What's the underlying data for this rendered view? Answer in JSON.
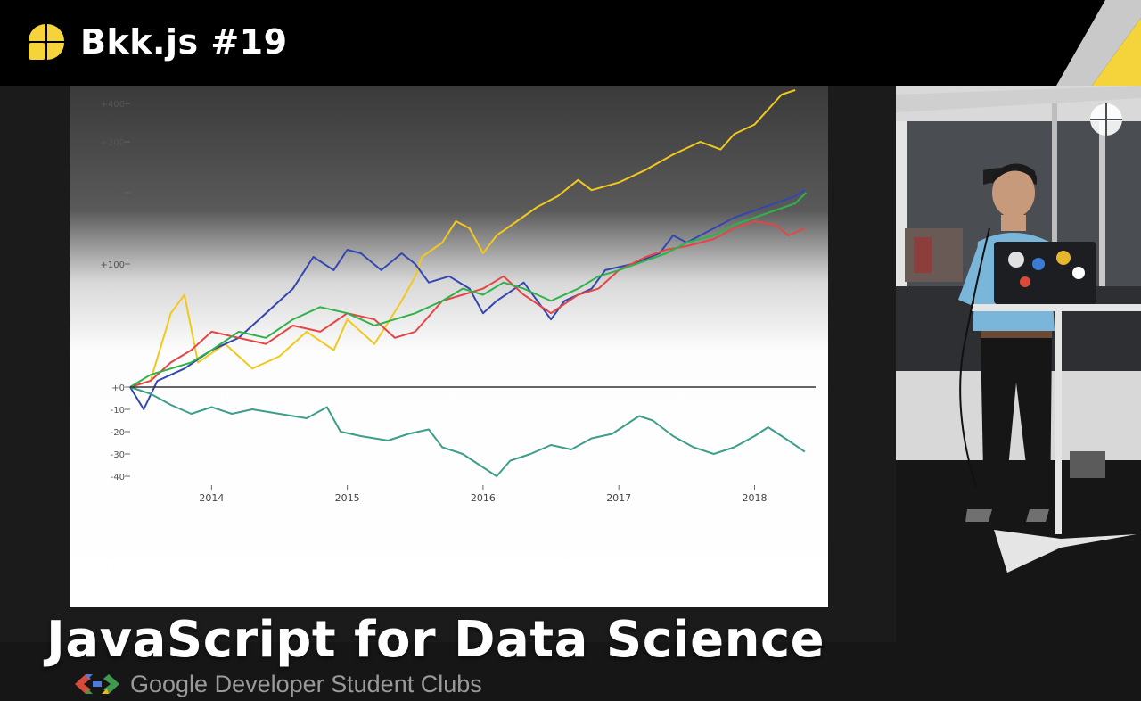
{
  "header": {
    "title": "Bkk.js #19",
    "logo_icon": "bkkjs-logo-icon",
    "accent_color": "#f5d33a"
  },
  "talk": {
    "title": "JavaScript for Data Science"
  },
  "sponsor": {
    "name": "Google Developer Student Clubs",
    "logo_icon": "gdsc-logo-icon"
  },
  "chart_data": {
    "type": "line",
    "title": "",
    "xlabel": "",
    "ylabel": "",
    "x_ticks": [
      "2014",
      "2015",
      "2016",
      "2017",
      "2018"
    ],
    "y_ticks": [
      "+400",
      "+300",
      "+200",
      "+100",
      "+0",
      "-10",
      "-20",
      "-30",
      "-40"
    ],
    "x_range": [
      2013.4,
      2018.45
    ],
    "grid": false,
    "baseline": 0,
    "series": [
      {
        "color": "#f2c81e",
        "points": [
          [
            2013.4,
            0
          ],
          [
            2013.55,
            5
          ],
          [
            2013.7,
            60
          ],
          [
            2013.8,
            75
          ],
          [
            2013.9,
            20
          ],
          [
            2014.1,
            35
          ],
          [
            2014.3,
            15
          ],
          [
            2014.5,
            25
          ],
          [
            2014.7,
            45
          ],
          [
            2014.9,
            30
          ],
          [
            2015.0,
            55
          ],
          [
            2015.2,
            35
          ],
          [
            2015.4,
            70
          ],
          [
            2015.5,
            90
          ],
          [
            2015.55,
            110
          ],
          [
            2015.7,
            130
          ],
          [
            2015.8,
            160
          ],
          [
            2015.9,
            150
          ],
          [
            2016.0,
            115
          ],
          [
            2016.1,
            140
          ],
          [
            2016.25,
            160
          ],
          [
            2016.4,
            180
          ],
          [
            2016.55,
            195
          ],
          [
            2016.7,
            225
          ],
          [
            2016.8,
            205
          ],
          [
            2017.0,
            220
          ],
          [
            2017.2,
            245
          ],
          [
            2017.4,
            275
          ],
          [
            2017.6,
            300
          ],
          [
            2017.75,
            285
          ],
          [
            2017.85,
            320
          ],
          [
            2018.0,
            345
          ],
          [
            2018.2,
            420
          ],
          [
            2018.3,
            430
          ]
        ]
      },
      {
        "color": "#3347b0",
        "points": [
          [
            2013.4,
            0
          ],
          [
            2013.5,
            -10
          ],
          [
            2013.6,
            5
          ],
          [
            2013.8,
            15
          ],
          [
            2014.0,
            30
          ],
          [
            2014.2,
            40
          ],
          [
            2014.4,
            60
          ],
          [
            2014.6,
            80
          ],
          [
            2014.75,
            110
          ],
          [
            2014.9,
            95
          ],
          [
            2015.0,
            120
          ],
          [
            2015.1,
            115
          ],
          [
            2015.25,
            95
          ],
          [
            2015.4,
            115
          ],
          [
            2015.5,
            100
          ],
          [
            2015.6,
            85
          ],
          [
            2015.75,
            90
          ],
          [
            2015.9,
            80
          ],
          [
            2016.0,
            60
          ],
          [
            2016.1,
            70
          ],
          [
            2016.3,
            85
          ],
          [
            2016.5,
            55
          ],
          [
            2016.6,
            70
          ],
          [
            2016.8,
            80
          ],
          [
            2016.9,
            95
          ],
          [
            2017.1,
            100
          ],
          [
            2017.3,
            115
          ],
          [
            2017.4,
            140
          ],
          [
            2017.5,
            130
          ],
          [
            2017.7,
            150
          ],
          [
            2017.85,
            165
          ],
          [
            2018.0,
            175
          ],
          [
            2018.15,
            185
          ],
          [
            2018.3,
            195
          ],
          [
            2018.37,
            205
          ]
        ]
      },
      {
        "color": "#e64545",
        "points": [
          [
            2013.4,
            0
          ],
          [
            2013.55,
            5
          ],
          [
            2013.7,
            20
          ],
          [
            2013.85,
            30
          ],
          [
            2014.0,
            45
          ],
          [
            2014.2,
            40
          ],
          [
            2014.4,
            35
          ],
          [
            2014.6,
            50
          ],
          [
            2014.8,
            45
          ],
          [
            2015.0,
            60
          ],
          [
            2015.2,
            55
          ],
          [
            2015.35,
            40
          ],
          [
            2015.5,
            45
          ],
          [
            2015.7,
            70
          ],
          [
            2015.85,
            75
          ],
          [
            2016.0,
            80
          ],
          [
            2016.15,
            90
          ],
          [
            2016.3,
            75
          ],
          [
            2016.5,
            60
          ],
          [
            2016.7,
            75
          ],
          [
            2016.85,
            80
          ],
          [
            2017.0,
            95
          ],
          [
            2017.2,
            110
          ],
          [
            2017.35,
            120
          ],
          [
            2017.5,
            125
          ],
          [
            2017.7,
            135
          ],
          [
            2017.85,
            150
          ],
          [
            2018.0,
            160
          ],
          [
            2018.15,
            155
          ],
          [
            2018.25,
            140
          ],
          [
            2018.37,
            150
          ]
        ]
      },
      {
        "color": "#2fb24a",
        "points": [
          [
            2013.4,
            0
          ],
          [
            2013.55,
            10
          ],
          [
            2013.7,
            15
          ],
          [
            2013.85,
            20
          ],
          [
            2014.0,
            30
          ],
          [
            2014.2,
            45
          ],
          [
            2014.4,
            40
          ],
          [
            2014.6,
            55
          ],
          [
            2014.8,
            65
          ],
          [
            2015.0,
            60
          ],
          [
            2015.2,
            50
          ],
          [
            2015.35,
            55
          ],
          [
            2015.5,
            60
          ],
          [
            2015.7,
            70
          ],
          [
            2015.85,
            80
          ],
          [
            2016.0,
            75
          ],
          [
            2016.15,
            85
          ],
          [
            2016.3,
            80
          ],
          [
            2016.5,
            70
          ],
          [
            2016.7,
            80
          ],
          [
            2016.85,
            90
          ],
          [
            2017.0,
            95
          ],
          [
            2017.2,
            105
          ],
          [
            2017.35,
            115
          ],
          [
            2017.5,
            130
          ],
          [
            2017.7,
            140
          ],
          [
            2017.85,
            155
          ],
          [
            2018.0,
            165
          ],
          [
            2018.15,
            175
          ],
          [
            2018.3,
            185
          ],
          [
            2018.38,
            200
          ]
        ]
      },
      {
        "color": "#3d9e8a",
        "points": [
          [
            2013.4,
            0
          ],
          [
            2013.55,
            -3
          ],
          [
            2013.7,
            -8
          ],
          [
            2013.85,
            -12
          ],
          [
            2014.0,
            -9
          ],
          [
            2014.15,
            -12
          ],
          [
            2014.3,
            -10
          ],
          [
            2014.5,
            -12
          ],
          [
            2014.7,
            -14
          ],
          [
            2014.85,
            -9
          ],
          [
            2014.95,
            -20
          ],
          [
            2015.1,
            -22
          ],
          [
            2015.3,
            -24
          ],
          [
            2015.45,
            -21
          ],
          [
            2015.6,
            -19
          ],
          [
            2015.7,
            -27
          ],
          [
            2015.85,
            -30
          ],
          [
            2015.95,
            -34
          ],
          [
            2016.1,
            -40
          ],
          [
            2016.2,
            -33
          ],
          [
            2016.35,
            -30
          ],
          [
            2016.5,
            -26
          ],
          [
            2016.65,
            -28
          ],
          [
            2016.8,
            -23
          ],
          [
            2016.95,
            -21
          ],
          [
            2017.05,
            -17
          ],
          [
            2017.15,
            -13
          ],
          [
            2017.25,
            -15
          ],
          [
            2017.4,
            -22
          ],
          [
            2017.55,
            -27
          ],
          [
            2017.7,
            -30
          ],
          [
            2017.85,
            -27
          ],
          [
            2018.0,
            -22
          ],
          [
            2018.1,
            -18
          ],
          [
            2018.25,
            -24
          ],
          [
            2018.37,
            -29
          ]
        ]
      }
    ]
  }
}
